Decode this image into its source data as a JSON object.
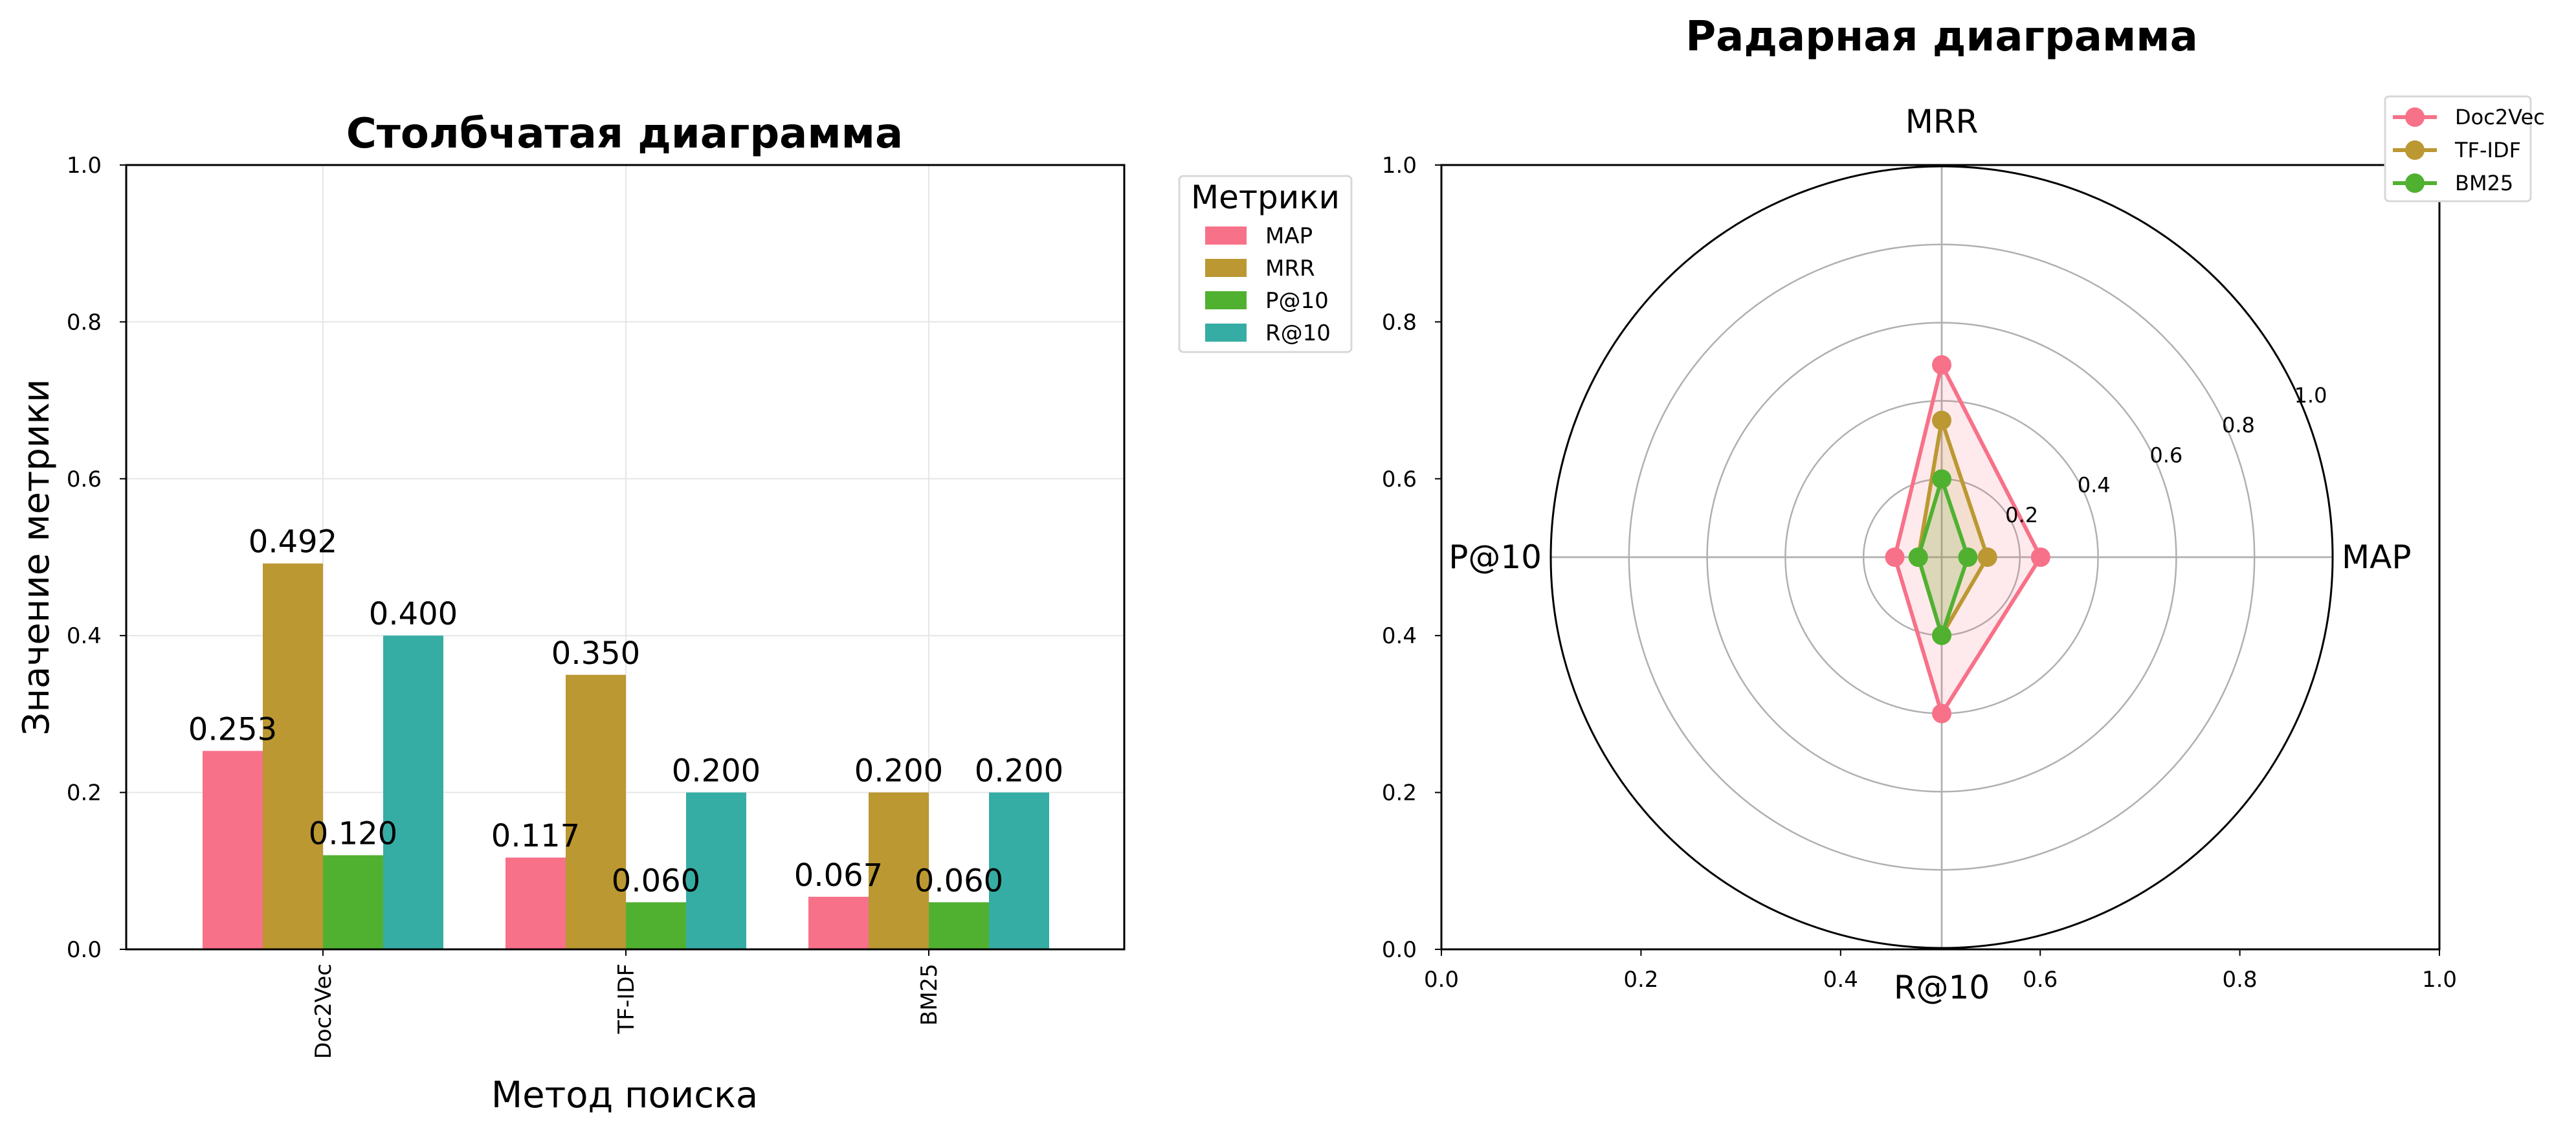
{
  "figure": {
    "suptitle": "Радарная диаграмма"
  },
  "chart_data": [
    {
      "type": "bar",
      "title": "Столбчатая диаграмма",
      "xlabel": "Метод поиска",
      "ylabel": "Значение метрики",
      "categories": [
        "Doc2Vec",
        "TF-IDF",
        "BM25"
      ],
      "ylim": [
        0,
        1.0
      ],
      "yticks": [
        "0.0",
        "0.2",
        "0.4",
        "0.6",
        "0.8",
        "1.0"
      ],
      "grid": true,
      "legend": {
        "title": "Метрики",
        "placement": "outside-top-right"
      },
      "series": [
        {
          "name": "MAP",
          "color": "#f77189",
          "values": [
            0.253,
            0.117,
            0.067
          ],
          "labels": [
            "0.253",
            "0.117",
            "0.067"
          ]
        },
        {
          "name": "MRR",
          "color": "#bb9832",
          "values": [
            0.492,
            0.35,
            0.2
          ],
          "labels": [
            "0.492",
            "0.350",
            "0.200"
          ]
        },
        {
          "name": "P@10",
          "color": "#50b131",
          "values": [
            0.12,
            0.06,
            0.06
          ],
          "labels": [
            "0.120",
            "0.060",
            "0.060"
          ]
        },
        {
          "name": "R@10",
          "color": "#36ada4",
          "values": [
            0.4,
            0.2,
            0.2
          ],
          "labels": [
            "0.400",
            "0.200",
            "0.200"
          ]
        }
      ]
    },
    {
      "type": "radar",
      "axes": [
        "MAP",
        "MRR",
        "P@10",
        "R@10"
      ],
      "rlim": [
        0,
        1.0
      ],
      "rticks": [
        "0.2",
        "0.4",
        "0.6",
        "0.8",
        "1.0"
      ],
      "frame_ticks": {
        "x": [
          "0.0",
          "0.2",
          "0.4",
          "0.6",
          "0.8",
          "1.0"
        ],
        "y": [
          "0.0",
          "0.2",
          "0.4",
          "0.6",
          "0.8",
          "1.0"
        ]
      },
      "legend": {
        "placement": "top-right"
      },
      "series": [
        {
          "name": "Doc2Vec",
          "color": "#f77189",
          "fill_color": "#f77189",
          "values": [
            0.253,
            0.492,
            0.12,
            0.4
          ]
        },
        {
          "name": "TF-IDF",
          "color": "#bb9832",
          "fill_color": "#bb9832",
          "values": [
            0.117,
            0.35,
            0.06,
            0.2
          ]
        },
        {
          "name": "BM25",
          "color": "#50b131",
          "fill_color": "#50b131",
          "values": [
            0.067,
            0.2,
            0.06,
            0.2
          ]
        }
      ]
    }
  ]
}
